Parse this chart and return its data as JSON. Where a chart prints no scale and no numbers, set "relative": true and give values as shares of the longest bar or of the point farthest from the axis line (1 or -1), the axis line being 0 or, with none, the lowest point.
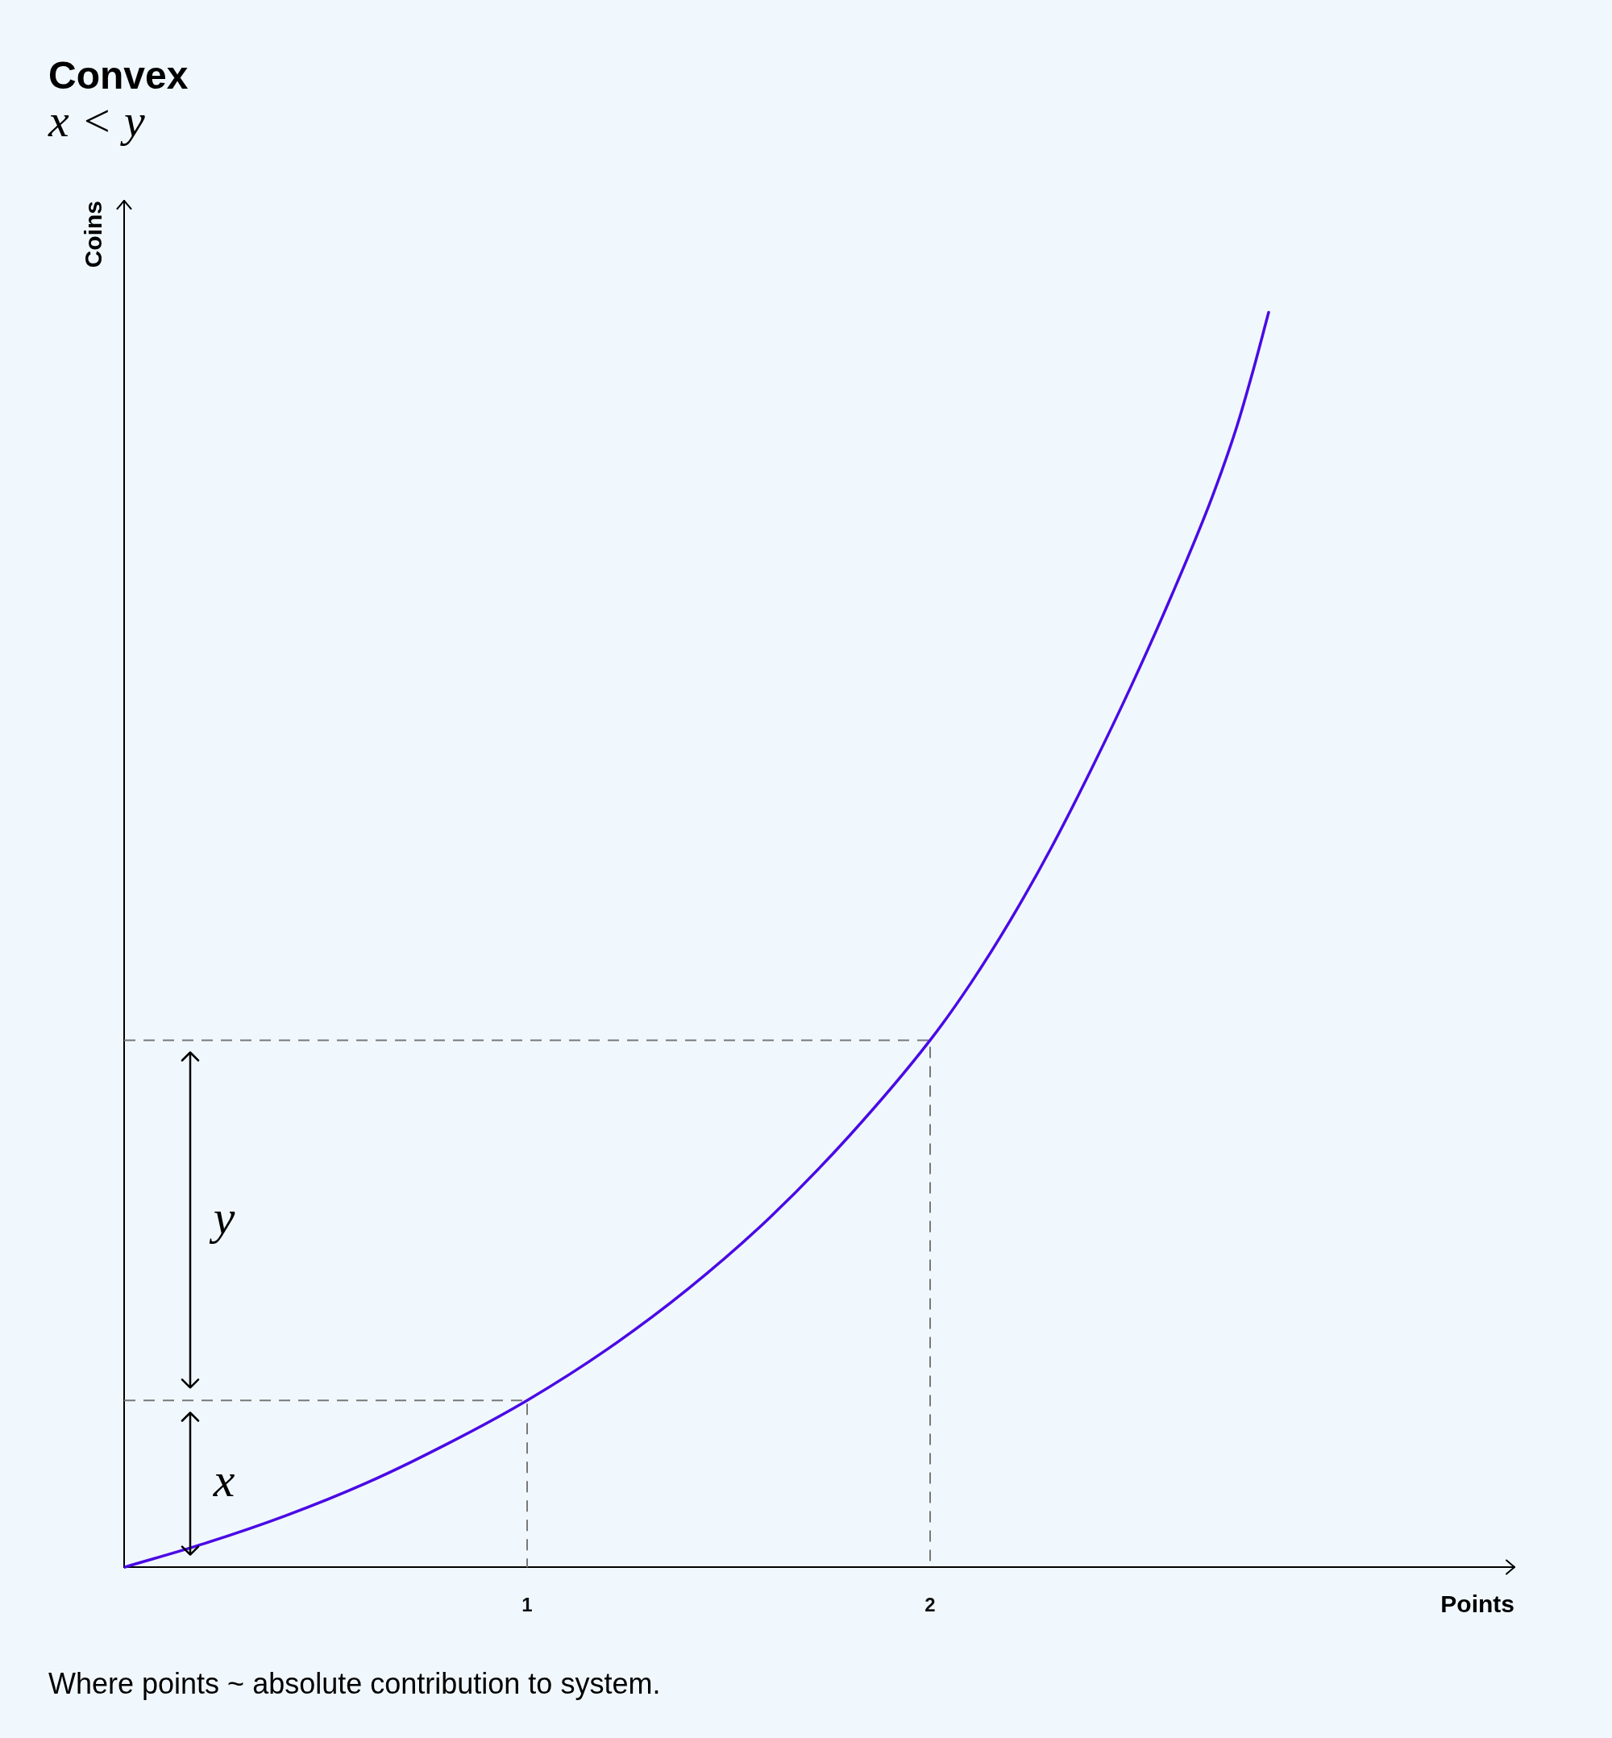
{
  "chart_data": {
    "type": "line",
    "title": "Convex",
    "subtitle": "x < y",
    "xlabel": "Points",
    "ylabel": "Coins",
    "relative": true,
    "xlim": [
      0,
      3.45
    ],
    "xticks": [
      1,
      2
    ],
    "marker": "none",
    "line_style": "solid",
    "series": [
      {
        "color": "#4a0ae6",
        "x": [
          0,
          0.2,
          0.4,
          0.6,
          0.8,
          1,
          1.2,
          1.4,
          1.6,
          1.8,
          2,
          2.1,
          2.2,
          2.3,
          2.4,
          2.5,
          2.6,
          2.7,
          2.76,
          2.8,
          2.84
        ],
        "values": [
          0,
          0.019,
          0.041,
          0.067,
          0.098,
          0.133,
          0.174,
          0.222,
          0.278,
          0.344,
          0.42,
          0.465,
          0.516,
          0.573,
          0.636,
          0.703,
          0.775,
          0.853,
          0.908,
          0.952,
          1
        ]
      },
      {
        "type": "line",
        "color": "#787878",
        "line_style": "dashed",
        "x": [
          0,
          1,
          1
        ],
        "values": [
          0.133,
          0.133,
          0
        ]
      },
      {
        "type": "line",
        "color": "#787878",
        "line_style": "dashed",
        "x": [
          0,
          2,
          2
        ],
        "values": [
          0.42,
          0.42,
          0
        ]
      }
    ],
    "annotations": [
      "x",
      "y",
      "Where points ~ absolute contribution to system."
    ]
  }
}
